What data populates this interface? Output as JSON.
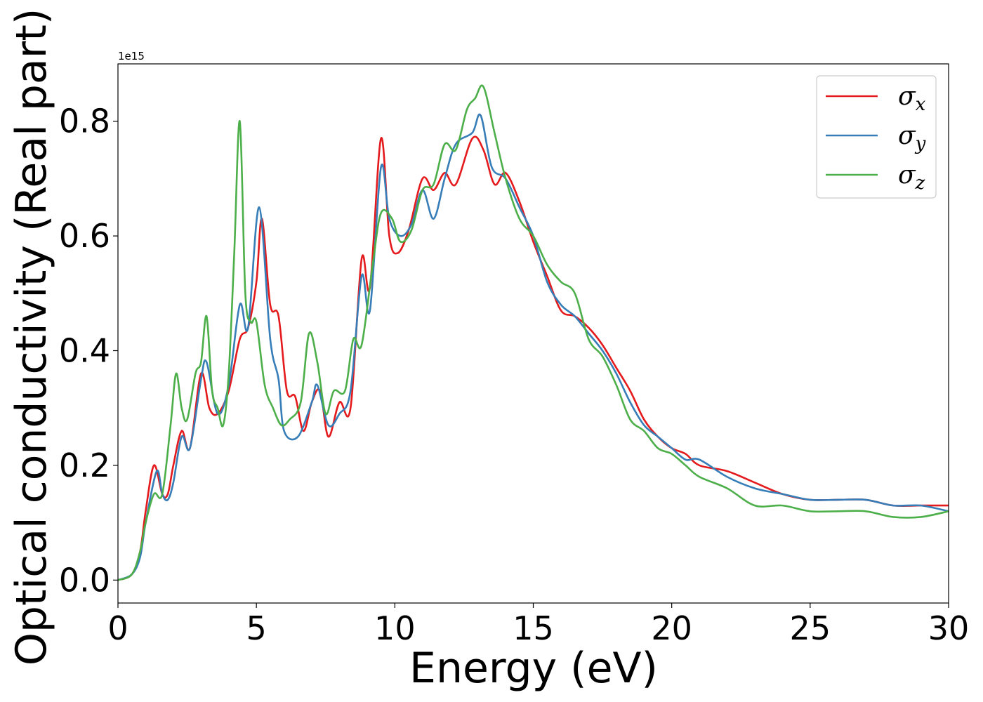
{
  "chart_data": {
    "type": "line",
    "xlabel": "Energy (eV)",
    "ylabel": "Optical conductivity (Real part)",
    "offset_text": "1e15",
    "xlim": [
      0,
      30
    ],
    "ylim": [
      -0.04,
      0.9
    ],
    "xticks": [
      0,
      5,
      10,
      15,
      20,
      25,
      30
    ],
    "yticks": [
      0.0,
      0.2,
      0.4,
      0.6,
      0.8
    ],
    "ytick_labels": [
      "0.0",
      "0.2",
      "0.4",
      "0.6",
      "0.8"
    ],
    "legend_position": "top-right",
    "grid": false,
    "series": [
      {
        "name": "σx",
        "legend_symbol": "σ",
        "legend_sub": "x",
        "color": "#e41a1c",
        "x": [
          0,
          0.5,
          0.8,
          1.0,
          1.3,
          1.6,
          1.8,
          2.0,
          2.3,
          2.6,
          3.0,
          3.3,
          3.6,
          4.0,
          4.4,
          4.7,
          5.0,
          5.2,
          5.5,
          5.8,
          6.1,
          6.4,
          6.7,
          7.0,
          7.3,
          7.6,
          8.0,
          8.4,
          8.8,
          9.1,
          9.5,
          9.8,
          10.1,
          10.5,
          11.0,
          11.4,
          11.8,
          12.2,
          12.8,
          13.2,
          13.6,
          14.0,
          14.5,
          15.0,
          15.5,
          16.0,
          16.5,
          17.0,
          17.5,
          18.0,
          18.5,
          19.0,
          19.5,
          20.0,
          20.5,
          21.0,
          22.0,
          23.0,
          24.0,
          25.0,
          26.0,
          27.0,
          28.0,
          29.0,
          30.0
        ],
        "y": [
          0.0,
          0.01,
          0.05,
          0.12,
          0.2,
          0.15,
          0.15,
          0.2,
          0.26,
          0.23,
          0.36,
          0.3,
          0.29,
          0.33,
          0.42,
          0.44,
          0.52,
          0.63,
          0.48,
          0.46,
          0.33,
          0.32,
          0.26,
          0.31,
          0.33,
          0.25,
          0.31,
          0.3,
          0.56,
          0.51,
          0.77,
          0.6,
          0.57,
          0.61,
          0.7,
          0.68,
          0.71,
          0.69,
          0.77,
          0.75,
          0.69,
          0.71,
          0.66,
          0.59,
          0.53,
          0.47,
          0.46,
          0.44,
          0.41,
          0.37,
          0.33,
          0.28,
          0.25,
          0.23,
          0.22,
          0.2,
          0.19,
          0.17,
          0.15,
          0.14,
          0.14,
          0.14,
          0.13,
          0.13,
          0.13
        ]
      },
      {
        "name": "σy",
        "legend_symbol": "σ",
        "legend_sub": "y",
        "color": "#377eb8",
        "x": [
          0,
          0.5,
          0.8,
          1.0,
          1.4,
          1.6,
          1.8,
          2.0,
          2.3,
          2.6,
          3.0,
          3.2,
          3.6,
          4.0,
          4.4,
          4.7,
          5.1,
          5.5,
          5.8,
          6.0,
          6.5,
          7.0,
          7.2,
          7.6,
          8.0,
          8.4,
          8.8,
          9.1,
          9.5,
          9.8,
          10.2,
          10.6,
          11.0,
          11.4,
          11.8,
          12.2,
          12.8,
          13.1,
          13.5,
          14.0,
          14.5,
          15.0,
          15.5,
          16.0,
          16.5,
          17.0,
          17.5,
          18.0,
          18.5,
          19.0,
          19.5,
          20.0,
          20.5,
          21.0,
          22.0,
          23.0,
          24.0,
          25.0,
          26.0,
          27.0,
          28.0,
          29.0,
          30.0
        ],
        "y": [
          0.0,
          0.01,
          0.04,
          0.1,
          0.19,
          0.15,
          0.14,
          0.17,
          0.25,
          0.23,
          0.35,
          0.38,
          0.29,
          0.34,
          0.48,
          0.44,
          0.65,
          0.42,
          0.35,
          0.26,
          0.25,
          0.31,
          0.34,
          0.27,
          0.29,
          0.33,
          0.53,
          0.47,
          0.72,
          0.63,
          0.6,
          0.62,
          0.68,
          0.63,
          0.7,
          0.76,
          0.78,
          0.81,
          0.72,
          0.7,
          0.65,
          0.6,
          0.52,
          0.48,
          0.46,
          0.43,
          0.4,
          0.36,
          0.31,
          0.27,
          0.25,
          0.23,
          0.21,
          0.21,
          0.18,
          0.16,
          0.15,
          0.14,
          0.14,
          0.14,
          0.13,
          0.13,
          0.12
        ]
      },
      {
        "name": "σz",
        "legend_symbol": "σ",
        "legend_sub": "z",
        "color": "#4daf4a",
        "x": [
          0,
          0.5,
          0.8,
          1.0,
          1.3,
          1.6,
          1.9,
          2.1,
          2.3,
          2.5,
          2.8,
          3.0,
          3.2,
          3.4,
          3.6,
          3.8,
          4.0,
          4.2,
          4.4,
          4.6,
          4.8,
          5.0,
          5.3,
          5.6,
          5.9,
          6.2,
          6.6,
          6.9,
          7.2,
          7.5,
          7.8,
          8.2,
          8.5,
          8.8,
          9.2,
          9.5,
          9.9,
          10.2,
          10.6,
          11.0,
          11.4,
          11.8,
          12.2,
          12.6,
          12.9,
          13.2,
          13.6,
          14.0,
          14.5,
          15.0,
          15.5,
          16.0,
          16.5,
          17.0,
          17.5,
          18.0,
          18.5,
          19.0,
          19.5,
          20.0,
          20.5,
          21.0,
          22.0,
          23.0,
          24.0,
          25.0,
          26.0,
          27.0,
          28.0,
          29.0,
          30.0
        ],
        "y": [
          0.0,
          0.01,
          0.05,
          0.1,
          0.15,
          0.15,
          0.27,
          0.36,
          0.3,
          0.28,
          0.36,
          0.38,
          0.46,
          0.33,
          0.3,
          0.27,
          0.36,
          0.57,
          0.8,
          0.5,
          0.45,
          0.45,
          0.34,
          0.3,
          0.27,
          0.28,
          0.31,
          0.43,
          0.38,
          0.29,
          0.33,
          0.33,
          0.42,
          0.41,
          0.55,
          0.64,
          0.63,
          0.59,
          0.61,
          0.68,
          0.69,
          0.76,
          0.75,
          0.82,
          0.84,
          0.86,
          0.78,
          0.7,
          0.63,
          0.6,
          0.55,
          0.52,
          0.5,
          0.42,
          0.39,
          0.34,
          0.28,
          0.26,
          0.23,
          0.22,
          0.2,
          0.18,
          0.16,
          0.13,
          0.13,
          0.12,
          0.12,
          0.12,
          0.11,
          0.11,
          0.12
        ]
      }
    ]
  }
}
